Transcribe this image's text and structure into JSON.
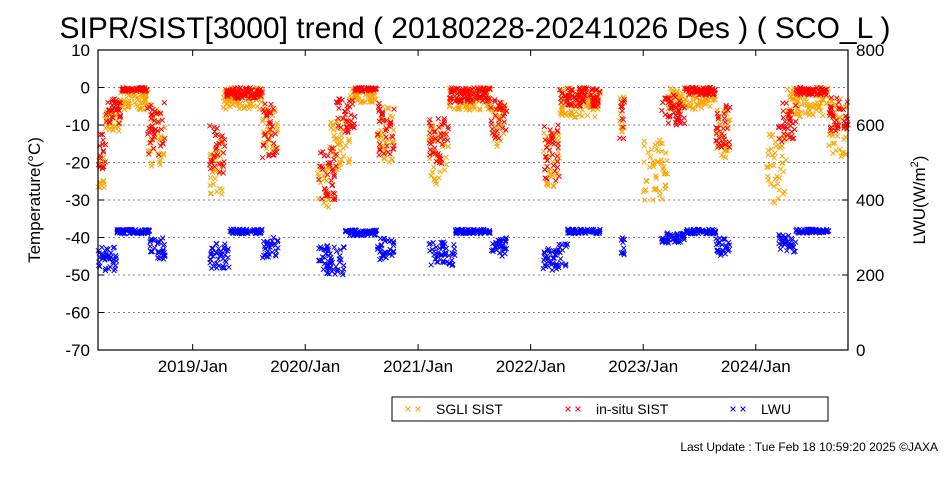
{
  "chart_data": {
    "type": "scatter",
    "title": "SIPR/SIST[3000] trend ( 20180228-20241026 Des ) ( SCO_L )",
    "ylabel": "Temperature(°C)",
    "y2label": "LWU(W/m²)",
    "y2label_main": "LWU(W/m",
    "y2label_sup": "2",
    "y2label_tail": ")",
    "xlim": [
      "2018-02-28",
      "2024-10-26"
    ],
    "ylim": [
      -70,
      10
    ],
    "y2lim": [
      0,
      800
    ],
    "yticks": [
      10,
      0,
      -10,
      -20,
      -30,
      -40,
      -50,
      -60,
      -70
    ],
    "y2ticks": [
      800,
      600,
      400,
      200,
      0
    ],
    "xticks": [
      {
        "date": "2019-01-01",
        "label": "2019/Jan"
      },
      {
        "date": "2020-01-01",
        "label": "2020/Jan"
      },
      {
        "date": "2021-01-01",
        "label": "2021/Jan"
      },
      {
        "date": "2022-01-01",
        "label": "2022/Jan"
      },
      {
        "date": "2023-01-01",
        "label": "2023/Jan"
      },
      {
        "date": "2024-01-01",
        "label": "2024/Jan"
      }
    ],
    "grid": true,
    "legend_position": "bottom-right",
    "series": [
      {
        "name": "SGLI SIST",
        "axis": "left",
        "color": "#ffa500",
        "segments": [
          {
            "start": "2018-02-28",
            "end": "2018-03-20",
            "y": [
              -27,
              -18
            ]
          },
          {
            "start": "2018-03-20",
            "end": "2018-05-10",
            "y": [
              -12,
              -4
            ]
          },
          {
            "start": "2018-05-10",
            "end": "2018-08-10",
            "y": [
              -6,
              0
            ]
          },
          {
            "start": "2018-08-10",
            "end": "2018-10-05",
            "y": [
              -21,
              -4
            ]
          },
          {
            "start": "2019-02-25",
            "end": "2019-04-10",
            "y": [
              -29,
              -14
            ]
          },
          {
            "start": "2019-04-10",
            "end": "2019-08-15",
            "y": [
              -6,
              0
            ]
          },
          {
            "start": "2019-08-15",
            "end": "2019-10-05",
            "y": [
              -19,
              -5
            ]
          },
          {
            "start": "2020-02-10",
            "end": "2020-03-20",
            "y": [
              -33,
              -20
            ]
          },
          {
            "start": "2020-03-20",
            "end": "2020-05-25",
            "y": [
              -22,
              -8
            ]
          },
          {
            "start": "2020-05-25",
            "end": "2020-08-20",
            "y": [
              -4,
              0
            ]
          },
          {
            "start": "2020-08-20",
            "end": "2020-10-15",
            "y": [
              -20,
              -5
            ]
          },
          {
            "start": "2021-02-05",
            "end": "2021-04-10",
            "y": [
              -26,
              -10
            ]
          },
          {
            "start": "2021-04-10",
            "end": "2021-08-25",
            "y": [
              -6,
              0
            ]
          },
          {
            "start": "2021-08-25",
            "end": "2021-10-15",
            "y": [
              -16,
              -4
            ]
          },
          {
            "start": "2022-02-10",
            "end": "2022-04-05",
            "y": [
              -27,
              -12
            ]
          },
          {
            "start": "2022-04-05",
            "end": "2022-08-15",
            "y": [
              -8,
              0
            ]
          },
          {
            "start": "2022-10-15",
            "end": "2022-11-01",
            "y": [
              -12,
              -2
            ]
          },
          {
            "start": "2023-01-01",
            "end": "2023-03-20",
            "y": [
              -30,
              -14
            ]
          },
          {
            "start": "2023-03-20",
            "end": "2023-08-25",
            "y": [
              -6,
              0
            ]
          },
          {
            "start": "2023-08-25",
            "end": "2023-10-10",
            "y": [
              -19,
              -6
            ]
          },
          {
            "start": "2024-02-05",
            "end": "2024-04-10",
            "y": [
              -31,
              -12
            ]
          },
          {
            "start": "2024-04-10",
            "end": "2024-08-25",
            "y": [
              -8,
              0
            ]
          },
          {
            "start": "2024-08-25",
            "end": "2024-10-26",
            "y": [
              -19,
              -3
            ]
          }
        ]
      },
      {
        "name": "in-situ SIST",
        "axis": "left",
        "color": "#ff0000",
        "segments": [
          {
            "start": "2018-02-28",
            "end": "2018-03-25",
            "y": [
              -22,
              -12
            ]
          },
          {
            "start": "2018-03-25",
            "end": "2018-05-15",
            "y": [
              -10,
              -3
            ]
          },
          {
            "start": "2018-05-15",
            "end": "2018-08-05",
            "y": [
              -1,
              0
            ]
          },
          {
            "start": "2018-08-05",
            "end": "2018-10-05",
            "y": [
              -18,
              -4
            ]
          },
          {
            "start": "2019-02-25",
            "end": "2019-04-15",
            "y": [
              -24,
              -10
            ]
          },
          {
            "start": "2019-04-15",
            "end": "2019-08-15",
            "y": [
              -3,
              0
            ]
          },
          {
            "start": "2019-08-15",
            "end": "2019-10-05",
            "y": [
              -19,
              -4
            ]
          },
          {
            "start": "2020-02-10",
            "end": "2020-04-10",
            "y": [
              -30,
              -16
            ]
          },
          {
            "start": "2020-04-10",
            "end": "2020-06-10",
            "y": [
              -12,
              -3
            ]
          },
          {
            "start": "2020-06-10",
            "end": "2020-08-20",
            "y": [
              -1,
              0
            ]
          },
          {
            "start": "2020-08-20",
            "end": "2020-10-15",
            "y": [
              -18,
              -4
            ]
          },
          {
            "start": "2021-02-05",
            "end": "2021-04-10",
            "y": [
              -22,
              -8
            ]
          },
          {
            "start": "2021-04-10",
            "end": "2021-08-25",
            "y": [
              -4,
              0
            ]
          },
          {
            "start": "2021-08-25",
            "end": "2021-10-15",
            "y": [
              -14,
              -3
            ]
          },
          {
            "start": "2022-02-10",
            "end": "2022-04-05",
            "y": [
              -25,
              -10
            ]
          },
          {
            "start": "2022-04-05",
            "end": "2022-08-15",
            "y": [
              -5,
              0
            ]
          },
          {
            "start": "2022-10-15",
            "end": "2022-11-01",
            "y": [
              -14,
              -2
            ]
          },
          {
            "start": "2023-03-01",
            "end": "2023-05-15",
            "y": [
              -10,
              -2
            ]
          },
          {
            "start": "2023-05-15",
            "end": "2023-08-25",
            "y": [
              -2,
              0
            ]
          },
          {
            "start": "2023-08-25",
            "end": "2023-10-10",
            "y": [
              -16,
              -4
            ]
          },
          {
            "start": "2024-03-15",
            "end": "2024-05-10",
            "y": [
              -15,
              -4
            ]
          },
          {
            "start": "2024-05-10",
            "end": "2024-08-25",
            "y": [
              -2,
              0
            ]
          },
          {
            "start": "2024-08-25",
            "end": "2024-10-26",
            "y": [
              -12,
              -2
            ]
          }
        ]
      },
      {
        "name": "LWU",
        "axis": "right",
        "color": "#0000ff",
        "segments": [
          {
            "start": "2018-02-28",
            "end": "2018-05-01",
            "y": [
              210,
              275
            ]
          },
          {
            "start": "2018-05-01",
            "end": "2018-08-15",
            "y": [
              310,
              322
            ]
          },
          {
            "start": "2018-08-15",
            "end": "2018-10-05",
            "y": [
              240,
              300
            ]
          },
          {
            "start": "2019-02-25",
            "end": "2019-05-01",
            "y": [
              215,
              285
            ]
          },
          {
            "start": "2019-05-01",
            "end": "2019-08-15",
            "y": [
              310,
              322
            ]
          },
          {
            "start": "2019-08-15",
            "end": "2019-10-05",
            "y": [
              240,
              300
            ]
          },
          {
            "start": "2020-02-10",
            "end": "2020-05-10",
            "y": [
              200,
              280
            ]
          },
          {
            "start": "2020-05-10",
            "end": "2020-08-20",
            "y": [
              305,
              320
            ]
          },
          {
            "start": "2020-08-20",
            "end": "2020-10-15",
            "y": [
              240,
              300
            ]
          },
          {
            "start": "2021-02-05",
            "end": "2021-05-01",
            "y": [
              225,
              290
            ]
          },
          {
            "start": "2021-05-01",
            "end": "2021-08-25",
            "y": [
              310,
              322
            ]
          },
          {
            "start": "2021-08-25",
            "end": "2021-10-15",
            "y": [
              250,
              300
            ]
          },
          {
            "start": "2022-02-10",
            "end": "2022-05-01",
            "y": [
              210,
              285
            ]
          },
          {
            "start": "2022-05-01",
            "end": "2022-08-15",
            "y": [
              310,
              322
            ]
          },
          {
            "start": "2022-10-15",
            "end": "2022-11-01",
            "y": [
              250,
              305
            ]
          },
          {
            "start": "2023-03-01",
            "end": "2023-05-15",
            "y": [
              285,
              312
            ]
          },
          {
            "start": "2023-05-15",
            "end": "2023-08-25",
            "y": [
              310,
              322
            ]
          },
          {
            "start": "2023-08-25",
            "end": "2023-10-10",
            "y": [
              250,
              300
            ]
          },
          {
            "start": "2024-03-15",
            "end": "2024-05-10",
            "y": [
              260,
              310
            ]
          },
          {
            "start": "2024-05-10",
            "end": "2024-08-25",
            "y": [
              312,
              322
            ]
          }
        ]
      }
    ]
  },
  "footer": {
    "last_update": "Last Update : Tue Feb 18 10:59:20 2025  ©JAXA"
  }
}
